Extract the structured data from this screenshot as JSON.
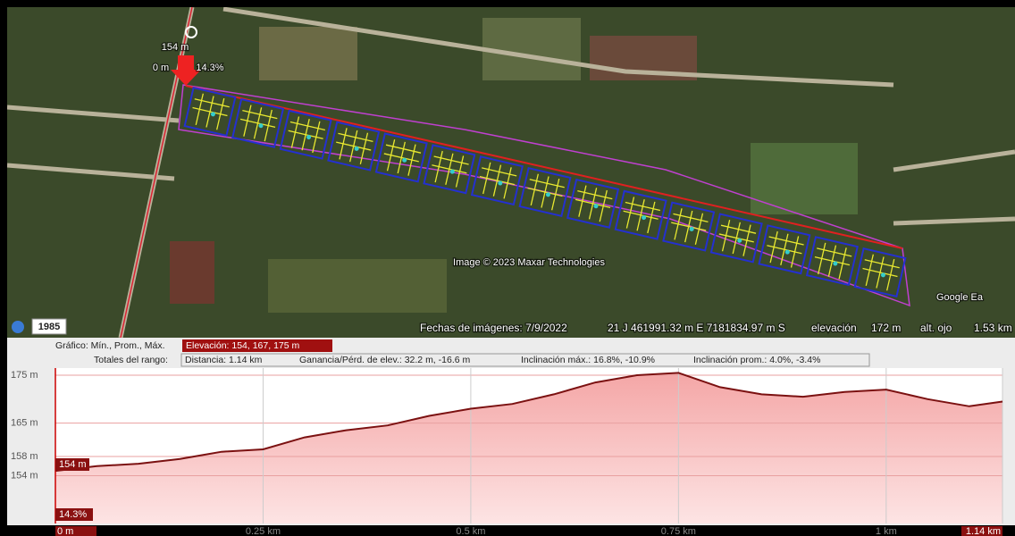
{
  "map": {
    "marker_elevation": "154 m",
    "marker_distance": "0 m",
    "marker_slope": "14.3%",
    "historical_year": "1985",
    "attribution": "Image © 2023 Maxar Technologies",
    "logo": "Google Ea",
    "status": {
      "imagery_date": "Fechas de imágenes: 7/9/2022",
      "coordinates": "21 J 461991.32 m E 7181834.97 m S",
      "elevation_label": "elevación",
      "elevation_value": "172 m",
      "eye_alt_label": "alt. ojo",
      "eye_alt_value": "1.53 km"
    }
  },
  "stats": {
    "graph_label": "Gráfico: Mín., Prom., Máx.",
    "elevation": "Elevación: 154, 167, 175 m",
    "range_label": "Totales del rango:",
    "distance": "Distancia: 1.14 km",
    "gain_loss": "Ganancia/Pérd. de elev.: 32.2 m, -16.6 m",
    "max_slope": "Inclinación máx.: 16.8%, -10.9%",
    "avg_slope": "Inclinación prom.: 4.0%, -3.4%"
  },
  "chart_data": {
    "type": "line",
    "x": [
      0,
      0.05,
      0.1,
      0.15,
      0.2,
      0.25,
      0.3,
      0.35,
      0.4,
      0.45,
      0.5,
      0.55,
      0.6,
      0.65,
      0.7,
      0.75,
      0.8,
      0.85,
      0.9,
      0.95,
      1.0,
      1.05,
      1.1,
      1.14
    ],
    "values": [
      155,
      156,
      156.5,
      157.5,
      159,
      159.5,
      162,
      163.5,
      164.5,
      166.5,
      168,
      169,
      171,
      173.5,
      175,
      175.5,
      172.5,
      171,
      170.5,
      171.5,
      172,
      170,
      168.5,
      169.5
    ],
    "color": "#7b1111",
    "xlim": [
      0,
      1.14
    ],
    "ylim": [
      144,
      176.5
    ],
    "xticks": [
      {
        "value": 0,
        "label": "0 m"
      },
      {
        "value": 0.25,
        "label": "0.25 km"
      },
      {
        "value": 0.5,
        "label": "0.5 km"
      },
      {
        "value": 0.75,
        "label": "0.75 km"
      },
      {
        "value": 1,
        "label": "1 km"
      },
      {
        "value": 1.14,
        "label": "1.14 km"
      }
    ],
    "yticks": [
      {
        "value": 175,
        "label": "175 m"
      },
      {
        "value": 165,
        "label": "165 m"
      },
      {
        "value": 158,
        "label": "158 m"
      },
      {
        "value": 154,
        "label": "154 m"
      }
    ],
    "cursor_elevation": "154 m",
    "cursor_slope": "14.3%",
    "grid": true
  }
}
